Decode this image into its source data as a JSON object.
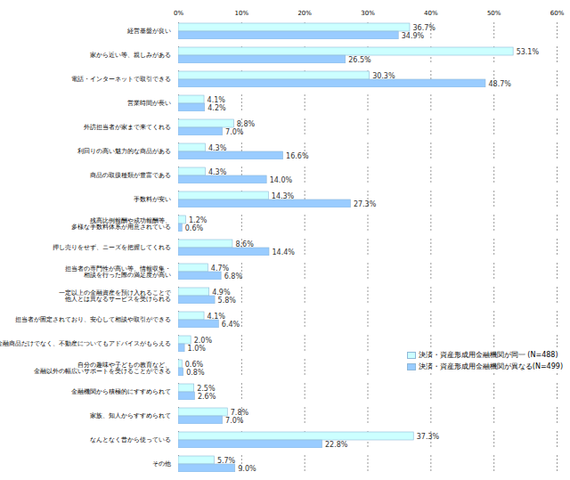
{
  "chart_data": {
    "type": "bar",
    "orientation": "horizontal",
    "categories": [
      "経営基盤が良い",
      "家から近い等、親しみがある",
      "電話・インターネットで取引できる",
      "営業時間が長い",
      "外訪担当者が家まで来てくれる",
      "利回りの高い魅力的な商品がある",
      "商品の取扱種類が豊富である",
      "手数料が安い",
      "残高比例報酬や成功報酬等、\n多様な手数料体系が用意されている",
      "押し売りをせず、ニーズを把握してくれる",
      "担当者の専門性が高い等、情報収集・\n相談を行った際の満足度が高い",
      "一定以上の金融資産を預け入れることで\n他人とは異なるサービスを受けられる",
      "担当者が固定されており、安心して相談や取引ができる",
      "金融商品だけでなく、不動産についてもアドバイスがもらえる",
      "自分の趣味や子どもの教育など、\n金融以外の幅広いサポートを受けることができる",
      "金融機関から積極的にすすめられて",
      "家族、知人からすすめられて",
      "なんとなく昔から使っている",
      "その他"
    ],
    "series": [
      {
        "name": "決済・資産形成用金融機関が同一 (N=488)",
        "color": "#ccffff",
        "values": [
          36.7,
          53.1,
          30.3,
          4.1,
          8.8,
          4.3,
          4.3,
          14.3,
          1.2,
          8.6,
          4.7,
          4.9,
          4.1,
          2.0,
          0.6,
          2.5,
          7.8,
          37.3,
          5.7
        ],
        "value_labels": [
          "36.7%",
          "53.1%",
          "30.3%",
          "4.1%",
          "8.8%",
          "4.3%",
          "4.3%",
          "14.3%",
          "1.2%",
          "8.6%",
          "4.7%",
          "4.9%",
          "4.1%",
          "2.0%",
          "0.6%",
          "2.5%",
          "7.8%",
          "37.3%",
          "5.7%"
        ]
      },
      {
        "name": "決済・資産形成用金融機関が異なる(N=499)",
        "color": "#99ccff",
        "values": [
          34.9,
          26.5,
          48.7,
          4.2,
          7.0,
          16.6,
          14.0,
          27.3,
          0.6,
          14.4,
          6.8,
          5.8,
          6.4,
          1.0,
          0.8,
          2.6,
          7.0,
          22.8,
          9.0
        ],
        "value_labels": [
          "34.9%",
          "26.5%",
          "48.7%",
          "4.2%",
          "7.0%",
          "16.6%",
          "14.0%",
          "27.3%",
          "0.6%",
          "14.4%",
          "6.8%",
          "5.8%",
          "6.4%",
          "1.0%",
          "0.8%",
          "2.6%",
          "7.0%",
          "22.8%",
          "9.0%"
        ]
      }
    ],
    "xlim": [
      0,
      60
    ],
    "xticks": [
      {
        "value": 0,
        "label": "0%"
      },
      {
        "value": 10,
        "label": "10%"
      },
      {
        "value": 20,
        "label": "20%"
      },
      {
        "value": 30,
        "label": "30%"
      },
      {
        "value": 40,
        "label": "40%"
      },
      {
        "value": 50,
        "label": "50%"
      },
      {
        "value": 60,
        "label": "60%"
      }
    ],
    "grid": true,
    "data_labels": true,
    "legend": "right"
  }
}
